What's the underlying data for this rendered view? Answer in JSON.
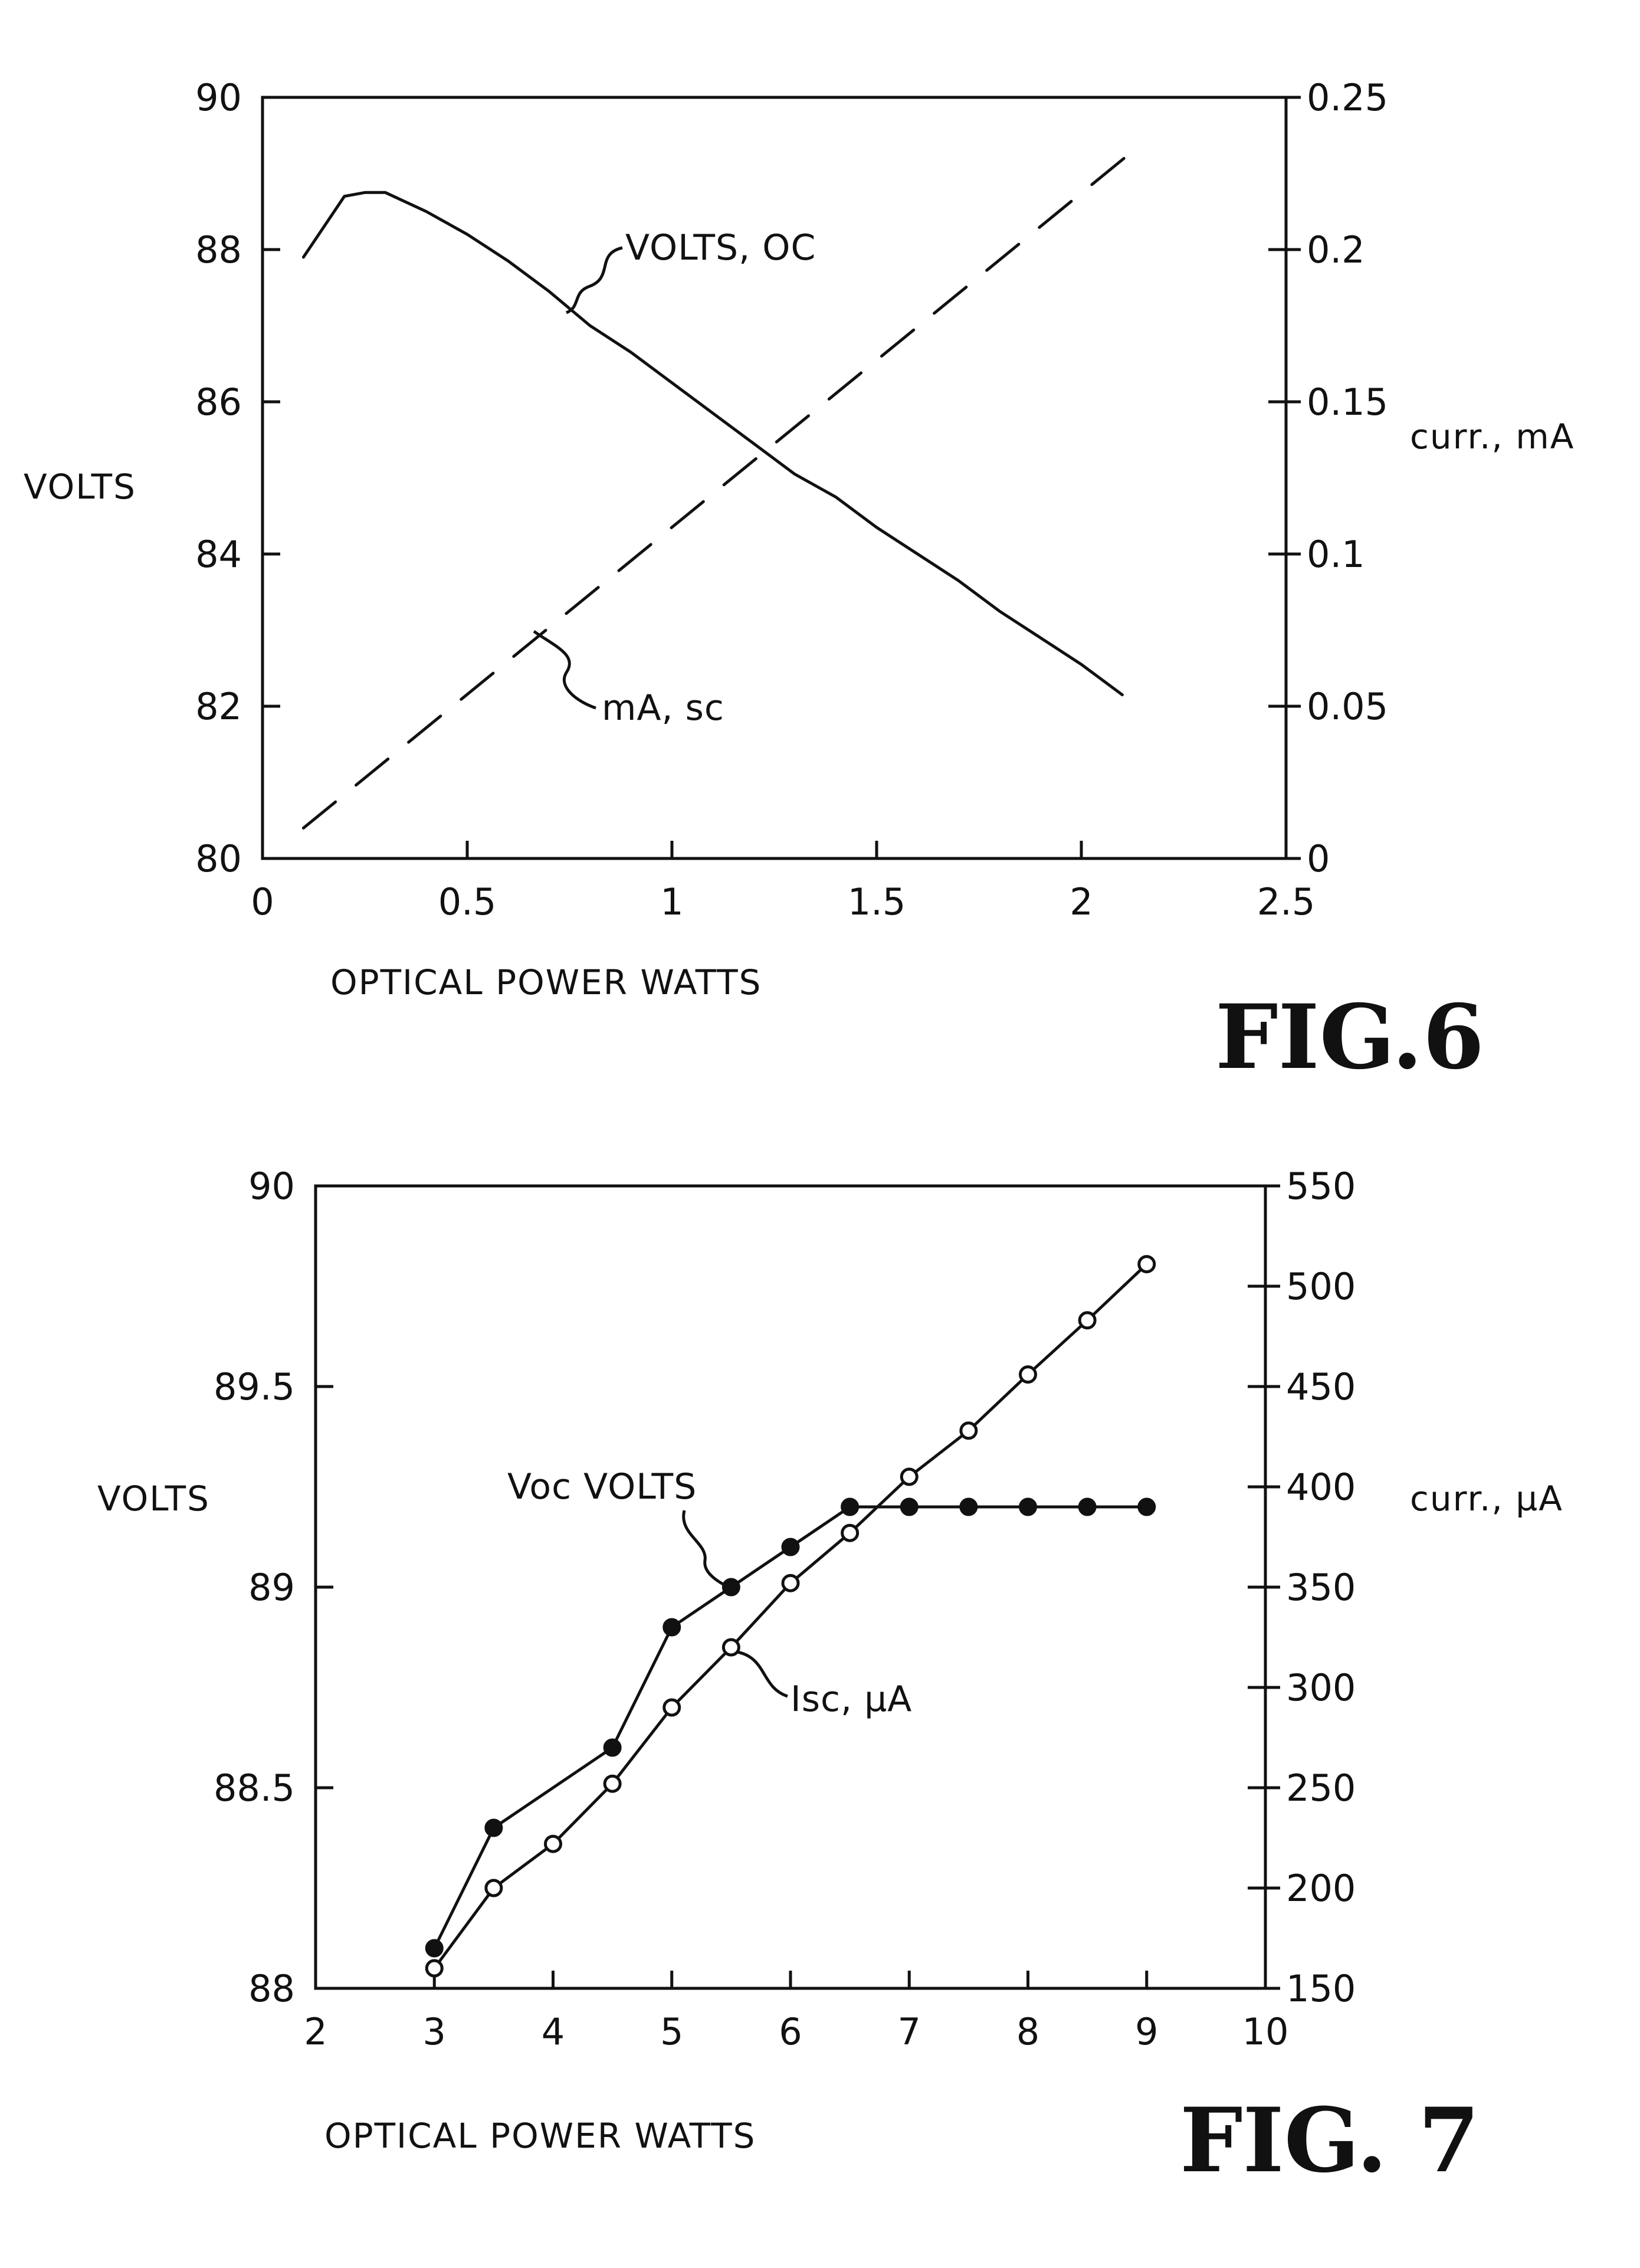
{
  "chart_data": [
    {
      "type": "line",
      "figure_label": "FIG.6",
      "xlabel": "OPTICAL POWER WATTS",
      "ylabel_left": "VOLTS",
      "ylabel_right": "curr., mA",
      "xlim": [
        0,
        2.5
      ],
      "ylim_left": [
        80,
        90
      ],
      "ylim_right": [
        0,
        0.25
      ],
      "x_ticks": [
        "0",
        "0.5",
        "1",
        "1.5",
        "2",
        "2.5"
      ],
      "y_left_ticks": [
        "80",
        "82",
        "84",
        "86",
        "88",
        "90"
      ],
      "y_right_ticks": [
        "0",
        "0.05",
        "0.1",
        "0.15",
        "0.2",
        "0.25"
      ],
      "grid": false,
      "series": [
        {
          "name": "VOLTS, OC",
          "axis": "left",
          "style": "solid",
          "x": [
            0.1,
            0.2,
            0.25,
            0.3,
            0.4,
            0.5,
            0.6,
            0.7,
            0.8,
            0.9,
            1.0,
            1.1,
            1.2,
            1.3,
            1.4,
            1.5,
            1.6,
            1.7,
            1.8,
            1.9,
            2.0,
            2.1
          ],
          "y": [
            87.9,
            88.7,
            88.75,
            88.75,
            88.5,
            88.2,
            87.85,
            87.45,
            87.0,
            86.65,
            86.25,
            85.85,
            85.45,
            85.05,
            84.75,
            84.35,
            84.0,
            83.65,
            83.25,
            82.9,
            82.55,
            82.15
          ]
        },
        {
          "name": "mA, sc",
          "axis": "right",
          "style": "dashed",
          "x": [
            0.1,
            2.15
          ],
          "y": [
            0.01,
            0.235
          ]
        }
      ]
    },
    {
      "type": "line",
      "figure_label": "FIG. 7",
      "xlabel": "OPTICAL POWER WATTS",
      "ylabel_left": "VOLTS",
      "ylabel_right": "curr., µA",
      "xlim": [
        2,
        10
      ],
      "ylim_left": [
        88,
        90
      ],
      "ylim_right": [
        150,
        550
      ],
      "x_ticks": [
        "2",
        "3",
        "4",
        "5",
        "6",
        "7",
        "8",
        "9",
        "10"
      ],
      "y_left_ticks": [
        "88",
        "88.5",
        "89",
        "89.5",
        "90"
      ],
      "y_right_ticks": [
        "150",
        "200",
        "250",
        "300",
        "350",
        "400",
        "450",
        "500",
        "550"
      ],
      "grid": false,
      "series": [
        {
          "name": "Voc VOLTS",
          "axis": "left",
          "marker": "filled",
          "x": [
            3,
            3.5,
            4.5,
            5,
            5.5,
            6,
            6.5,
            7,
            7.5,
            8,
            8.5,
            9
          ],
          "y": [
            88.1,
            88.4,
            88.6,
            88.9,
            89.0,
            89.1,
            89.2,
            89.2,
            89.2,
            89.2,
            89.2,
            89.2
          ]
        },
        {
          "name": "Isc, µA",
          "axis": "right",
          "marker": "open",
          "x": [
            3,
            3.5,
            4,
            4.5,
            5,
            5.5,
            6,
            6.5,
            7,
            7.5,
            8,
            8.5,
            9
          ],
          "y": [
            160,
            200,
            222,
            252,
            290,
            320,
            352,
            377,
            405,
            428,
            456,
            483,
            511
          ]
        }
      ]
    }
  ]
}
